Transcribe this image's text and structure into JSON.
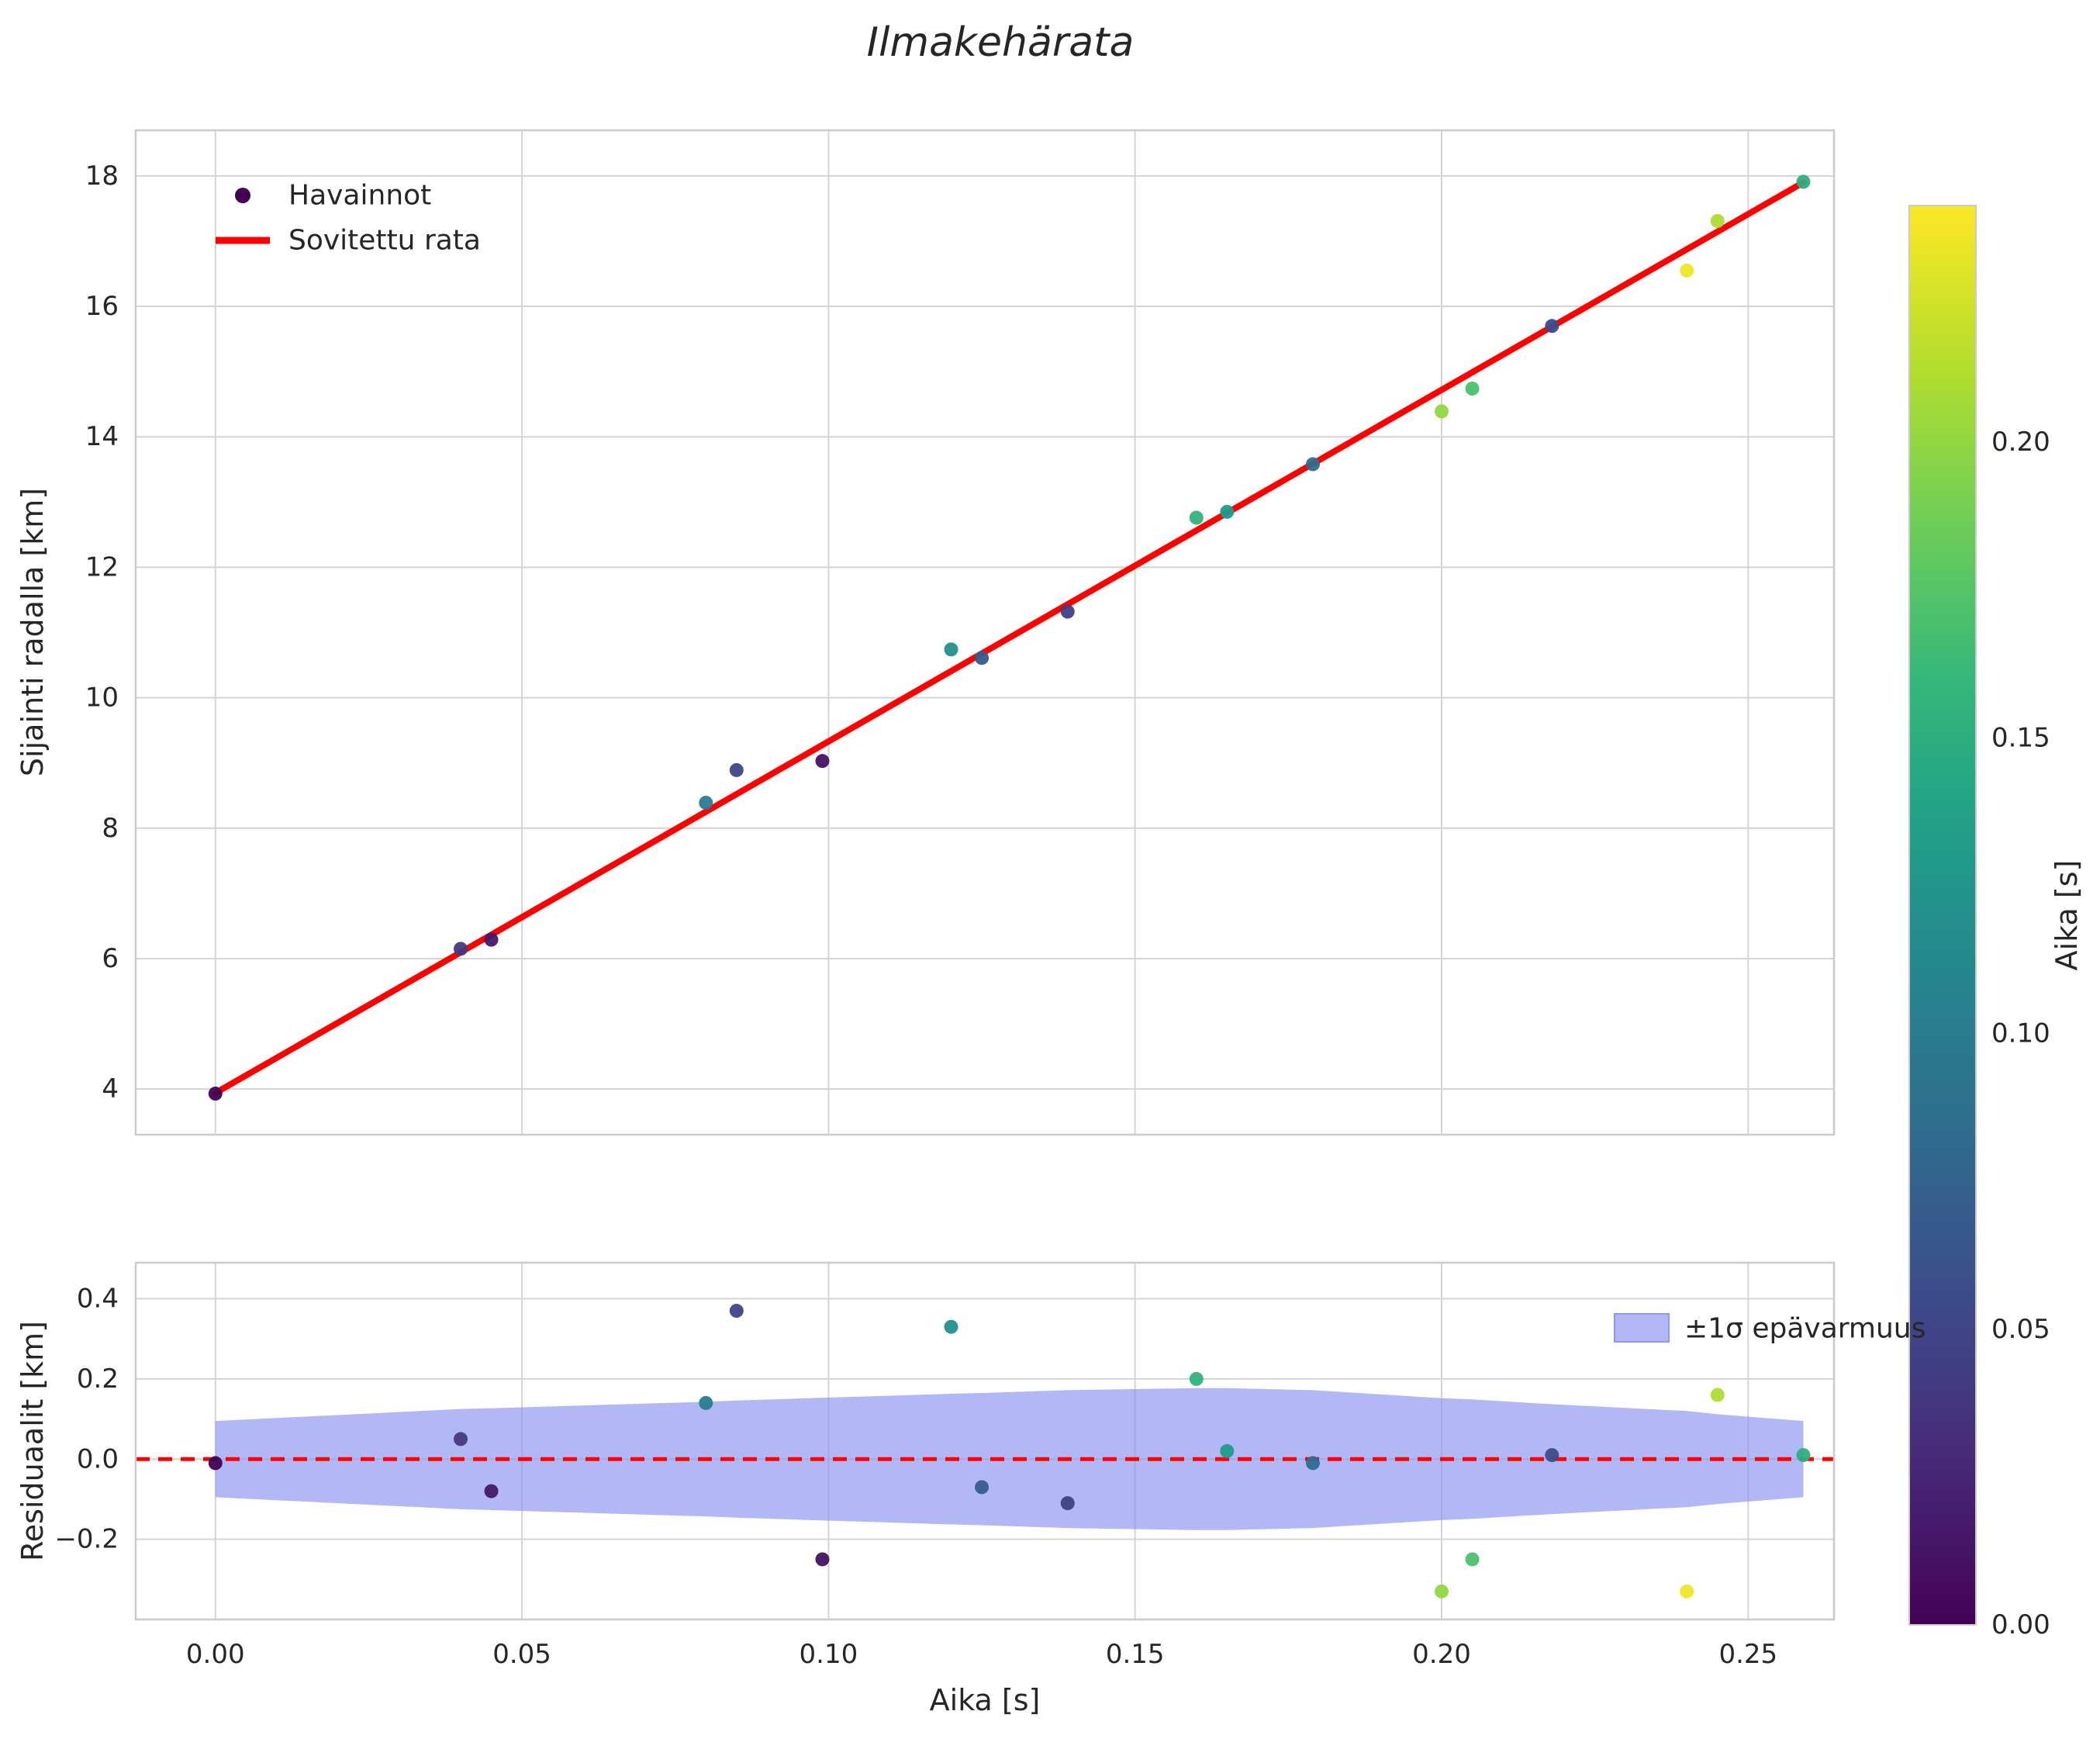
{
  "title": "Ilmakehärata",
  "colors": {
    "fit_line": "#ff0000",
    "zero_line": "#ff0000",
    "band_fill": "#8890f0",
    "grid": "#d4d4d4",
    "spine": "#cbcbcb",
    "text": "#262626",
    "legend_marker": "#440154",
    "background": "#ffffff"
  },
  "legend_main": {
    "scatter_label": "Havainnot",
    "line_label": "Sovitettu rata"
  },
  "legend_residual": {
    "band_label": "±1σ epävarmuus"
  },
  "colorbar": {
    "label": "Aika [s]",
    "vmin": 0.0,
    "vmax": 0.24,
    "colormap": "viridis",
    "ticks": [
      {
        "v": 0.0,
        "label": "0.00"
      },
      {
        "v": 0.05,
        "label": "0.05"
      },
      {
        "v": 0.1,
        "label": "0.10"
      },
      {
        "v": 0.15,
        "label": "0.15"
      },
      {
        "v": 0.2,
        "label": "0.20"
      }
    ]
  },
  "chart_data": [
    {
      "type": "scatter",
      "name": "trajectory-plot",
      "title": "Ilmakehärata",
      "ylabel": "Sijainti radalla [km]",
      "xlabel": "",
      "xlim": [
        -0.013,
        0.264
      ],
      "ylim": [
        3.3,
        18.7
      ],
      "grid": true,
      "legend_position": "upper-left",
      "x_tick_labels_visible": false,
      "xticks": [
        {
          "v": 0.0,
          "label": "0.00"
        },
        {
          "v": 0.05,
          "label": "0.05"
        },
        {
          "v": 0.1,
          "label": "0.10"
        },
        {
          "v": 0.15,
          "label": "0.15"
        },
        {
          "v": 0.2,
          "label": "0.20"
        },
        {
          "v": 0.25,
          "label": "0.25"
        }
      ],
      "yticks": [
        {
          "v": 4,
          "label": "4"
        },
        {
          "v": 6,
          "label": "6"
        },
        {
          "v": 8,
          "label": "8"
        },
        {
          "v": 10,
          "label": "10"
        },
        {
          "v": 12,
          "label": "12"
        },
        {
          "v": 14,
          "label": "14"
        },
        {
          "v": 16,
          "label": "16"
        },
        {
          "v": 18,
          "label": "18"
        }
      ],
      "series": [
        {
          "name": "Havainnot",
          "type": "scatter",
          "x": [
            0.0,
            0.04,
            0.045,
            0.08,
            0.085,
            0.099,
            0.12,
            0.125,
            0.139,
            0.16,
            0.165,
            0.179,
            0.2,
            0.205,
            0.218,
            0.24,
            0.245,
            0.259
          ],
          "y": [
            3.93,
            6.15,
            6.29,
            8.39,
            8.89,
            9.03,
            10.74,
            10.61,
            11.32,
            12.76,
            12.85,
            13.58,
            14.39,
            14.74,
            15.7,
            16.55,
            17.31,
            17.91
          ],
          "color_value": [
            0.0,
            0.04,
            0.015,
            0.1,
            0.05,
            0.01,
            0.12,
            0.07,
            0.045,
            0.155,
            0.13,
            0.085,
            0.2,
            0.17,
            0.055,
            0.235,
            0.21,
            0.15
          ]
        },
        {
          "name": "Sovitettu rata",
          "type": "line",
          "x": [
            0.0,
            0.259
          ],
          "y": [
            3.94,
            17.9
          ]
        }
      ]
    },
    {
      "type": "scatter",
      "name": "residuals-plot",
      "title": "",
      "ylabel": "Residuaalit [km]",
      "xlabel": "Aika [s]",
      "xlim": [
        -0.013,
        0.264
      ],
      "ylim": [
        -0.4,
        0.49
      ],
      "grid": true,
      "legend_position": "upper-right",
      "x_tick_labels_visible": true,
      "zero_line": 0.0,
      "xticks": [
        {
          "v": 0.0,
          "label": "0.00"
        },
        {
          "v": 0.05,
          "label": "0.05"
        },
        {
          "v": 0.1,
          "label": "0.10"
        },
        {
          "v": 0.15,
          "label": "0.15"
        },
        {
          "v": 0.2,
          "label": "0.20"
        },
        {
          "v": 0.25,
          "label": "0.25"
        }
      ],
      "yticks": [
        {
          "v": -0.2,
          "label": "−0.2"
        },
        {
          "v": 0.0,
          "label": "0.0"
        },
        {
          "v": 0.2,
          "label": "0.2"
        },
        {
          "v": 0.4,
          "label": "0.4"
        }
      ],
      "series": [
        {
          "name": "±1σ epävarmuus",
          "type": "band",
          "x": [
            0.0,
            0.04,
            0.045,
            0.08,
            0.085,
            0.099,
            0.12,
            0.125,
            0.139,
            0.16,
            0.165,
            0.179,
            0.2,
            0.205,
            0.218,
            0.24,
            0.245,
            0.259
          ],
          "upper": [
            0.095,
            0.125,
            0.127,
            0.143,
            0.146,
            0.153,
            0.163,
            0.165,
            0.172,
            0.177,
            0.177,
            0.172,
            0.152,
            0.149,
            0.137,
            0.12,
            0.112,
            0.095
          ],
          "lower": [
            -0.095,
            -0.125,
            -0.127,
            -0.143,
            -0.146,
            -0.153,
            -0.163,
            -0.165,
            -0.172,
            -0.177,
            -0.177,
            -0.172,
            -0.152,
            -0.149,
            -0.137,
            -0.12,
            -0.112,
            -0.095
          ]
        },
        {
          "name": "residuals",
          "type": "scatter",
          "x": [
            0.0,
            0.04,
            0.045,
            0.08,
            0.085,
            0.099,
            0.12,
            0.125,
            0.139,
            0.16,
            0.165,
            0.179,
            0.2,
            0.205,
            0.218,
            0.24,
            0.245,
            0.259
          ],
          "y": [
            -0.01,
            0.05,
            -0.08,
            0.14,
            0.37,
            -0.25,
            0.33,
            -0.07,
            -0.11,
            0.2,
            0.02,
            -0.01,
            -0.33,
            -0.25,
            0.01,
            -0.33,
            0.16,
            0.01
          ],
          "color_value": [
            0.0,
            0.04,
            0.015,
            0.1,
            0.05,
            0.01,
            0.12,
            0.07,
            0.045,
            0.155,
            0.13,
            0.085,
            0.2,
            0.17,
            0.055,
            0.235,
            0.21,
            0.15
          ]
        }
      ]
    }
  ]
}
